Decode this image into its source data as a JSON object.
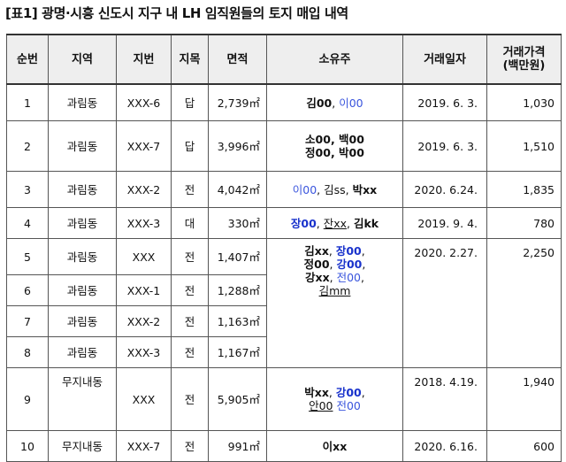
{
  "title": "[표1] 광명·시흥 신도시 지구 내 LH 임직원들의 토지 매입 내역",
  "headers": {
    "no": "순번",
    "area_name": "지역",
    "lot": "지번",
    "land_type": "지목",
    "size": "면적",
    "owner": "소유주",
    "date": "거래일자",
    "price": "거래가격\n(백만원)"
  },
  "rows": [
    {
      "no": "1",
      "area_name": "과림동",
      "lot": "XXX-6",
      "land_type": "답",
      "size": "2,739㎡",
      "date": "2019. 6. 3.",
      "price": "1,030",
      "owners": [
        {
          "t": "김00",
          "c": "k"
        },
        {
          "t": ", ",
          "c": "n"
        },
        {
          "t": "이00",
          "c": "bl"
        }
      ]
    },
    {
      "no": "2",
      "area_name": "과림동",
      "lot": "XXX-7",
      "land_type": "답",
      "size": "3,996㎡",
      "date": "2019. 6. 3.",
      "price": "1,510",
      "owners": [
        {
          "t": "소00, 백00",
          "c": "k"
        },
        {
          "t": "정00, 박00",
          "c": "k",
          "br": true
        }
      ]
    },
    {
      "no": "3",
      "area_name": "과림동",
      "lot": "XXX-2",
      "land_type": "전",
      "size": "4,042㎡",
      "date": "2020. 6.24.",
      "price": "1,835",
      "owners": [
        {
          "t": "이00",
          "c": "bl"
        },
        {
          "t": ", 김ss, ",
          "c": "n"
        },
        {
          "t": "박xx",
          "c": "k"
        }
      ]
    },
    {
      "no": "4",
      "area_name": "과림동",
      "lot": "XXX-3",
      "land_type": "대",
      "size": "330㎡",
      "date": "2019. 9. 4.",
      "price": "780",
      "owners": [
        {
          "t": "장00",
          "c": "bb"
        },
        {
          "t": ", ",
          "c": "n"
        },
        {
          "t": "잔xx",
          "c": "u"
        },
        {
          "t": ", ",
          "c": "n"
        },
        {
          "t": "김kk",
          "c": "k"
        }
      ]
    },
    {
      "no": "5",
      "area_name": "과림동",
      "lot": "XXX",
      "land_type": "전",
      "size": "1,407㎡"
    },
    {
      "no": "6",
      "area_name": "과림동",
      "lot": "XXX-1",
      "land_type": "전",
      "size": "1,288㎡"
    },
    {
      "no": "7",
      "area_name": "과림동",
      "lot": "XXX-2",
      "land_type": "전",
      "size": "1,163㎡"
    },
    {
      "no": "8",
      "area_name": "과림동",
      "lot": "XXX-3",
      "land_type": "전",
      "size": "1,167㎡"
    },
    {
      "no": "9",
      "area_name": "무지내동",
      "lot": "XXX",
      "land_type": "전",
      "size": "5,905㎡",
      "date": "2018. 4.19.",
      "price": "1,940",
      "owners": [
        {
          "t": "박xx",
          "c": "k"
        },
        {
          "t": ", ",
          "c": "n"
        },
        {
          "t": "강00",
          "c": "bb"
        },
        {
          "t": ",",
          "c": "n"
        },
        {
          "t": "안00",
          "c": "u",
          "br": true
        },
        {
          "t": " 전00",
          "c": "bl"
        }
      ]
    },
    {
      "no": "10",
      "area_name": "무지내동",
      "lot": "XXX-7",
      "land_type": "전",
      "size": "991㎡",
      "date": "2020. 6.16.",
      "price": "600",
      "owners": [
        {
          "t": "이xx",
          "c": "k"
        }
      ]
    }
  ],
  "group_5_8": {
    "date": "2020. 2.27.",
    "price": "2,250",
    "owners": [
      {
        "t": "김xx",
        "c": "k"
      },
      {
        "t": ", ",
        "c": "n"
      },
      {
        "t": "장00",
        "c": "bb"
      },
      {
        "t": ",",
        "c": "n"
      },
      {
        "t": "정00",
        "c": "k",
        "br": true
      },
      {
        "t": ", ",
        "c": "n"
      },
      {
        "t": "강00",
        "c": "bb"
      },
      {
        "t": ",",
        "c": "n"
      },
      {
        "t": "강xx",
        "c": "k",
        "br": true
      },
      {
        "t": ", ",
        "c": "n"
      },
      {
        "t": "전00",
        "c": "bl"
      },
      {
        "t": ",",
        "c": "n"
      },
      {
        "t": "김mm",
        "c": "u",
        "br": true
      }
    ]
  }
}
